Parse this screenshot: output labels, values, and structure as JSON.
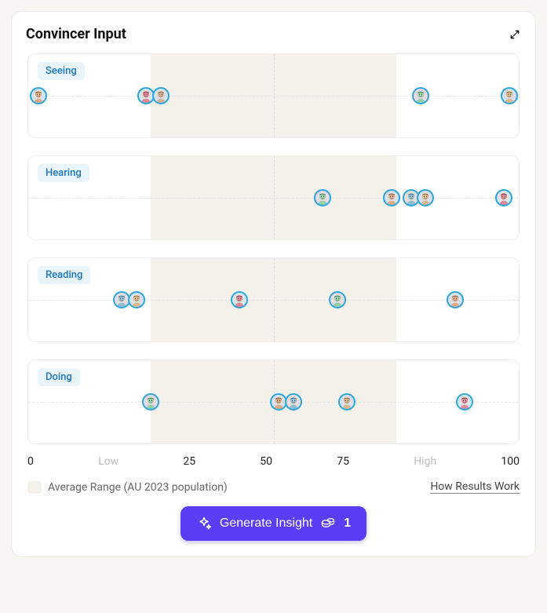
{
  "card": {
    "title": "Convincer Input",
    "axis": {
      "ticks": [
        "0",
        "Low",
        "25",
        "50",
        "75",
        "High",
        "100"
      ],
      "muted_indices": [
        1,
        5
      ]
    },
    "legend": {
      "label": "Average Range (AU 2023 population)",
      "link": "How Results Work",
      "swatch_color": "#f4f1ea"
    },
    "avatar_border_color": "#2aa6e0",
    "avatar_size": 22,
    "rows": [
      {
        "label": "Seeing",
        "band": {
          "start": 25,
          "end": 75
        },
        "points": [
          {
            "value": 2,
            "hue": 25,
            "sat": 55
          },
          {
            "value": 24,
            "hue": 350,
            "sat": 55
          },
          {
            "value": 27,
            "hue": 30,
            "sat": 45
          },
          {
            "value": 80,
            "hue": 140,
            "sat": 40
          },
          {
            "value": 98,
            "hue": 35,
            "sat": 50
          }
        ]
      },
      {
        "label": "Hearing",
        "band": {
          "start": 25,
          "end": 75
        },
        "points": [
          {
            "value": 60,
            "hue": 140,
            "sat": 40
          },
          {
            "value": 74,
            "hue": 25,
            "sat": 55
          },
          {
            "value": 78,
            "hue": 200,
            "sat": 40
          },
          {
            "value": 81,
            "hue": 35,
            "sat": 50
          },
          {
            "value": 97,
            "hue": 350,
            "sat": 55
          }
        ]
      },
      {
        "label": "Reading",
        "band": {
          "start": 25,
          "end": 75
        },
        "points": [
          {
            "value": 19,
            "hue": 200,
            "sat": 40
          },
          {
            "value": 22,
            "hue": 35,
            "sat": 50
          },
          {
            "value": 43,
            "hue": 350,
            "sat": 55
          },
          {
            "value": 63,
            "hue": 140,
            "sat": 40
          },
          {
            "value": 87,
            "hue": 25,
            "sat": 55
          }
        ]
      },
      {
        "label": "Doing",
        "band": {
          "start": 25,
          "end": 75
        },
        "points": [
          {
            "value": 25,
            "hue": 140,
            "sat": 40
          },
          {
            "value": 51,
            "hue": 25,
            "sat": 55
          },
          {
            "value": 54,
            "hue": 200,
            "sat": 40
          },
          {
            "value": 65,
            "hue": 35,
            "sat": 45
          },
          {
            "value": 89,
            "hue": 350,
            "sat": 50
          }
        ]
      }
    ]
  },
  "button": {
    "label": "Generate Insight",
    "cost": "1",
    "bg": "#5b3df5"
  }
}
